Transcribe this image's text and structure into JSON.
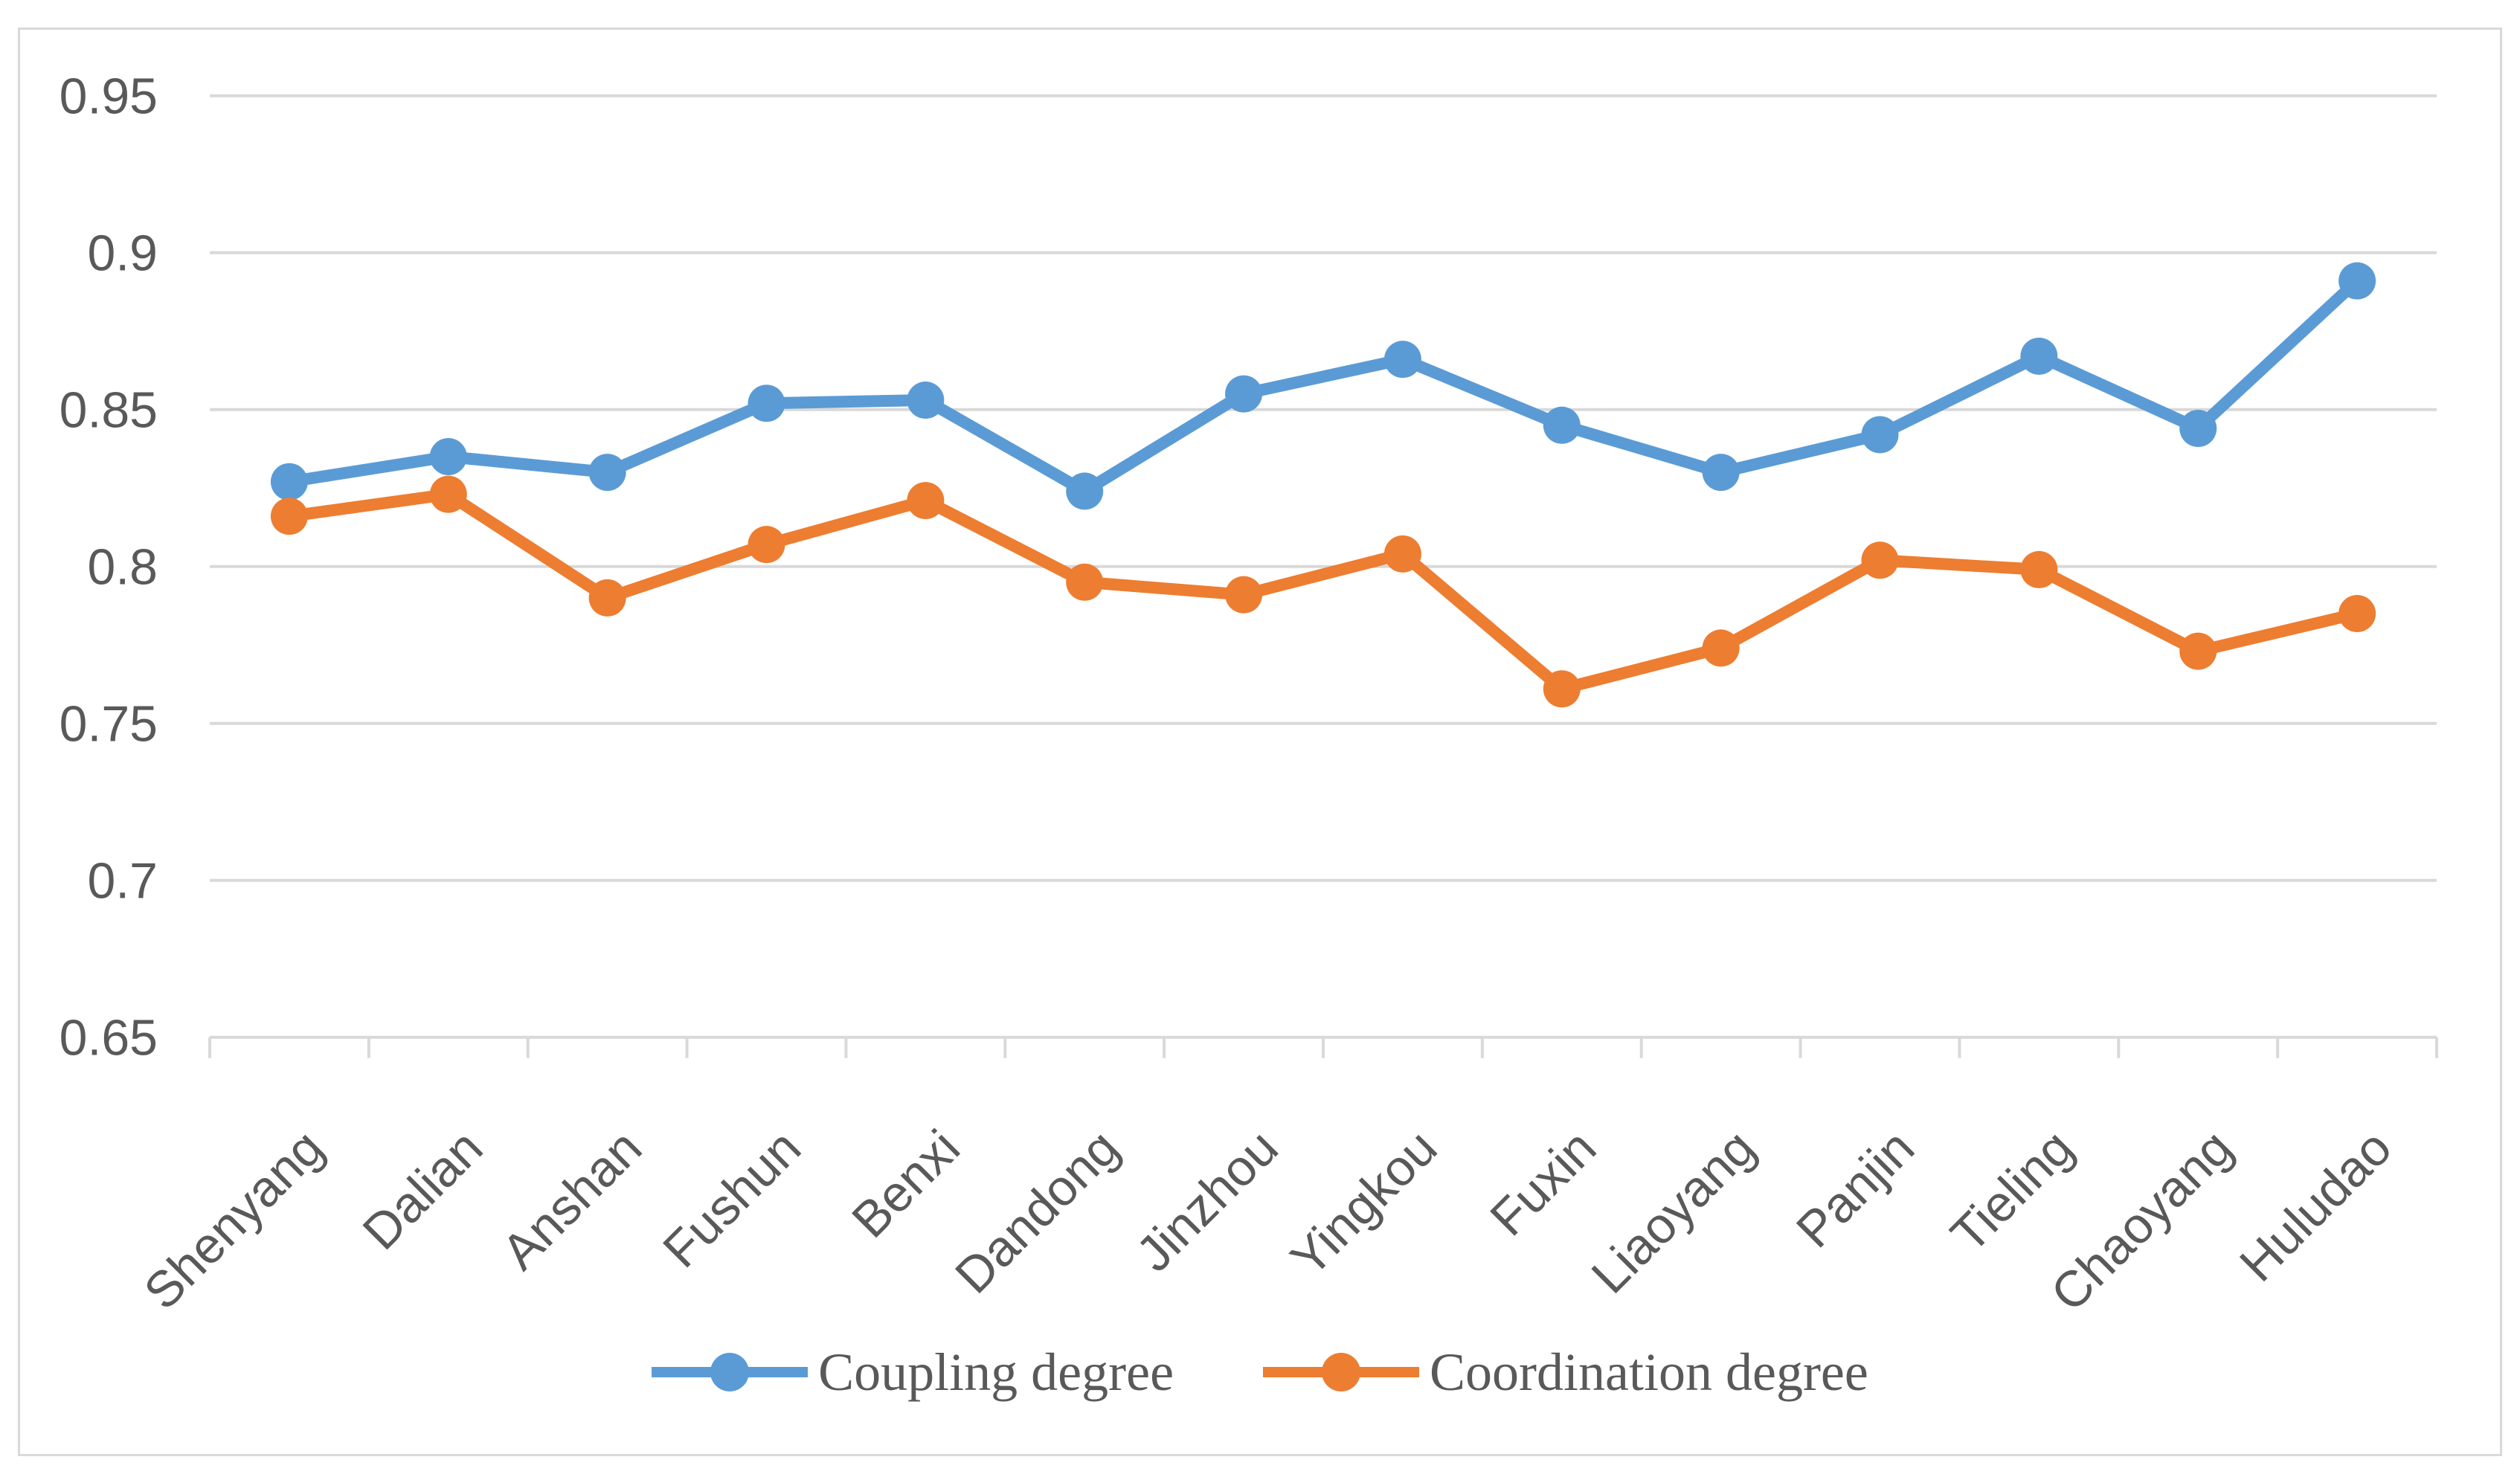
{
  "chart_data": {
    "type": "line",
    "title": "",
    "xlabel": "",
    "ylabel": "",
    "categories": [
      "Shenyang",
      "Dalian",
      "Anshan",
      "Fushun",
      "Benxi",
      "Dandong",
      "Jinzhou",
      "Yingkou",
      "Fuxin",
      "Liaoyang",
      "Panjin",
      "Tieling",
      "Chaoyang",
      "Huludao"
    ],
    "series": [
      {
        "name": "Coupling degree",
        "color": "#5B9BD5",
        "marker": "circle",
        "values": [
          0.827,
          0.835,
          0.83,
          0.852,
          0.853,
          0.824,
          0.855,
          0.866,
          0.845,
          0.83,
          0.842,
          0.867,
          0.844,
          0.891
        ]
      },
      {
        "name": "Coordination degree",
        "color": "#ED7D31",
        "marker": "circle",
        "values": [
          0.816,
          0.823,
          0.79,
          0.807,
          0.821,
          0.795,
          0.791,
          0.804,
          0.761,
          0.774,
          0.802,
          0.799,
          0.773,
          0.785
        ]
      }
    ],
    "ylim": [
      0.65,
      0.95
    ],
    "ytick_labels": [
      "0.65",
      "0.7",
      "0.75",
      "0.8",
      "0.85",
      "0.9",
      "0.95"
    ],
    "yticks": [
      0.65,
      0.7,
      0.75,
      0.8,
      0.85,
      0.9,
      0.95
    ],
    "grid": true,
    "legend_position": "bottom",
    "x_label_rotation_deg": -45
  },
  "style": {
    "gridline_color": "#D9D9D9",
    "axis_line_color": "#D9D9D9",
    "tick_mark_color": "#D9D9D9",
    "border_color": "#D9D9D9",
    "tick_label_color": "#595959",
    "legend_text_color": "#595959",
    "background_color": "#FFFFFF"
  }
}
